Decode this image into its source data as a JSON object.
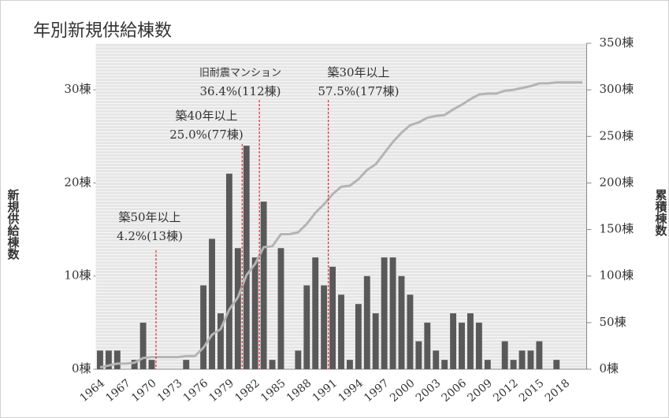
{
  "chart_data": {
    "type": "bar",
    "title": "年別新規供給棟数",
    "ylabel": "新規供給棟数",
    "y2label": "累積棟数",
    "categories": [
      "1964",
      null,
      null,
      "1967",
      null,
      null,
      "1970",
      null,
      null,
      "1973",
      null,
      null,
      "1976",
      null,
      null,
      "1979",
      null,
      null,
      "1982",
      null,
      null,
      "1985",
      null,
      null,
      "1988",
      null,
      null,
      "1991",
      null,
      null,
      "1994",
      null,
      null,
      "1997",
      null,
      null,
      "2000",
      null,
      null,
      "2003",
      null,
      null,
      "2006",
      null,
      null,
      "2009",
      null,
      null,
      "2012",
      null,
      null,
      "2015",
      null,
      null,
      "2018",
      null,
      null
    ],
    "series": [
      {
        "type": "bar",
        "color": "#595959",
        "values": [
          2,
          2,
          2,
          0,
          1,
          5,
          1,
          0,
          0,
          0,
          1,
          0,
          9,
          14,
          6,
          21,
          13,
          24,
          12,
          18,
          1,
          13,
          0,
          2,
          9,
          12,
          9,
          11,
          8,
          1,
          7,
          10,
          6,
          12,
          12,
          10,
          8,
          3,
          5,
          2,
          1,
          6,
          5,
          6,
          5,
          1,
          0,
          3,
          1,
          2,
          2,
          3,
          0,
          1,
          0,
          0,
          0
        ]
      },
      {
        "type": "line",
        "axis": "y2",
        "color": "#b4b4b4",
        "values": [
          2,
          4,
          6,
          6,
          7,
          12,
          13,
          13,
          13,
          13,
          14,
          14,
          23,
          37,
          43,
          64,
          77,
          101,
          113,
          131,
          132,
          145,
          145,
          147,
          156,
          168,
          177,
          188,
          196,
          197,
          204,
          214,
          220,
          232,
          244,
          254,
          262,
          265,
          270,
          272,
          273,
          279,
          284,
          290,
          295,
          296,
          296,
          299,
          300,
          302,
          304,
          307,
          307,
          308,
          308,
          308,
          308
        ]
      }
    ],
    "ylim": [
      0,
      35
    ],
    "yticks": [
      {
        "value": 0,
        "label": "0棟"
      },
      {
        "value": 10,
        "label": "10棟"
      },
      {
        "value": 20,
        "label": "20棟"
      },
      {
        "value": 30,
        "label": "30棟"
      }
    ],
    "y2lim": [
      0,
      350
    ],
    "y2ticks": [
      {
        "value": 0,
        "label": "0棟"
      },
      {
        "value": 50,
        "label": "50棟"
      },
      {
        "value": 100,
        "label": "100棟"
      },
      {
        "value": 150,
        "label": "150棟"
      },
      {
        "value": 200,
        "label": "200棟"
      },
      {
        "value": 250,
        "label": "250棟"
      },
      {
        "value": 300,
        "label": "300棟"
      },
      {
        "value": 350,
        "label": "350棟"
      }
    ],
    "annotations": [
      {
        "x": 1970.5,
        "lines": [
          "築50年以上",
          "4.2%(13棟)"
        ]
      },
      {
        "x": 1980.5,
        "lines": [
          "築40年以上",
          "25.0%(77棟)"
        ]
      },
      {
        "x": 1982.5,
        "lines": [
          "旧耐震マンション",
          "36.4%(112棟)"
        ]
      },
      {
        "x": 1990.5,
        "lines": [
          "築30年以上",
          "57.5%(177棟)"
        ]
      }
    ]
  }
}
